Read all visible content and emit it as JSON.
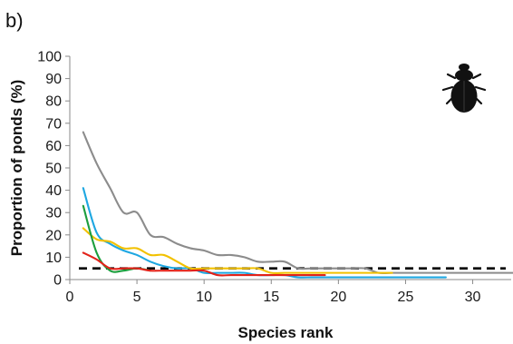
{
  "panel_label": "b)",
  "chart_data": {
    "type": "line",
    "title": "",
    "xlabel": "Species rank",
    "ylabel": "Proportion of ponds (%)",
    "xlim": [
      0,
      33
    ],
    "ylim": [
      0,
      100
    ],
    "xticks": [
      0,
      5,
      10,
      15,
      20,
      25,
      30
    ],
    "yticks": [
      0,
      10,
      20,
      30,
      40,
      50,
      60,
      70,
      80,
      90,
      100
    ],
    "grid": false,
    "legend": "none",
    "icon": "beetle-icon",
    "reference_line": {
      "y": 5,
      "style": "dashed",
      "color": "#000000"
    },
    "series": [
      {
        "color": "#8c8c8c",
        "x": [
          1,
          2,
          3,
          4,
          5,
          6,
          7,
          8,
          9,
          10,
          11,
          12,
          13,
          14,
          15,
          16,
          17,
          18,
          19,
          20,
          21,
          22,
          23,
          24,
          25,
          26,
          27,
          28,
          29,
          30,
          31,
          32,
          33
        ],
        "y": [
          66,
          52,
          41,
          30,
          30,
          20,
          19,
          16,
          14,
          13,
          11,
          11,
          10,
          8,
          8,
          8,
          5,
          5,
          5,
          5,
          5,
          5,
          3,
          3,
          3,
          3,
          3,
          3,
          3,
          3,
          3,
          3,
          3
        ]
      },
      {
        "color": "#1ea7e1",
        "x": [
          1,
          2,
          3,
          4,
          5,
          6,
          7,
          8,
          9,
          10,
          11,
          12,
          13,
          14,
          15,
          16,
          17,
          18,
          19,
          20,
          21,
          22,
          23,
          24,
          25,
          26,
          27,
          28
        ],
        "y": [
          41,
          21,
          16,
          13,
          11,
          8,
          6,
          5,
          5,
          3,
          3,
          3,
          3,
          2,
          2,
          2,
          1,
          1,
          1,
          1,
          1,
          1,
          1,
          1,
          1,
          1,
          1,
          1
        ]
      },
      {
        "color": "#f2c100",
        "x": [
          1,
          2,
          3,
          4,
          5,
          6,
          7,
          8,
          9,
          10,
          11,
          12,
          13,
          14,
          15,
          16,
          17,
          18,
          19,
          20,
          21,
          22,
          23,
          24
        ],
        "y": [
          23,
          18,
          17,
          14,
          14,
          11,
          11,
          8,
          5,
          5,
          5,
          5,
          5,
          5,
          3,
          3,
          3,
          3,
          3,
          3,
          3,
          3,
          3,
          3
        ]
      },
      {
        "color": "#1c9e3d",
        "x": [
          1,
          2,
          3,
          4,
          5,
          6
        ],
        "y": [
          33,
          12,
          4,
          4,
          5,
          4
        ]
      },
      {
        "color": "#e2231a",
        "x": [
          1,
          2,
          3,
          4,
          5,
          6,
          7,
          8,
          9,
          10,
          11,
          12,
          13,
          14,
          15,
          16,
          17,
          18,
          19
        ],
        "y": [
          12,
          9,
          5,
          5,
          5,
          4,
          4,
          4,
          4,
          4,
          2,
          2,
          2,
          2,
          2,
          2,
          2,
          2,
          2
        ]
      }
    ]
  }
}
